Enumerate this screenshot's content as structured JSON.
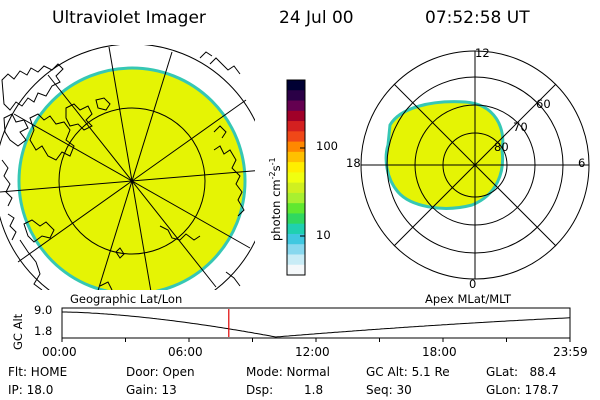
{
  "header": {
    "title": "Ultraviolet Imager",
    "date": "24 Jul 00",
    "time": "07:52:58 UT"
  },
  "colorbar": {
    "unit": "photon cm-2s-1",
    "unit_prefix": "photon cm",
    "unit_sup1": "-2",
    "unit_mid": "s",
    "unit_sup2": "-1",
    "ticks": [
      "100",
      "10"
    ],
    "colors": [
      "#000033",
      "#2a0046",
      "#640050",
      "#a00028",
      "#d42020",
      "#f04818",
      "#ff8800",
      "#ffc000",
      "#ffee00",
      "#f0ff10",
      "#d0f020",
      "#a8f030",
      "#60e830",
      "#30d860",
      "#20d0b0",
      "#40c8e0",
      "#88d8ee",
      "#c8ecf6",
      "#f4f8fa"
    ]
  },
  "left_panel": {
    "label": "Geographic Lat/Lon",
    "fill_color": "#e5f404",
    "edge_color": "#36c7b4"
  },
  "right_panel": {
    "label": "Apex MLat/MLT",
    "mlt_labels": {
      "top": "12",
      "left": "18",
      "right": "6",
      "bottom": "0"
    },
    "lat_labels": [
      "60",
      "70",
      "80"
    ]
  },
  "timeline": {
    "ylabel": "GC Alt",
    "yticks": [
      "9.0",
      "1.8"
    ],
    "xticks": [
      "00:00",
      "06:00",
      "12:00",
      "18:00",
      "23:59"
    ],
    "current_hour": 7.88,
    "marker_color": "#e00000"
  },
  "status": {
    "flt": "Flt: HOME",
    "ip": "IP: 18.0",
    "door": "Door: Open",
    "gain": "Gain: 13",
    "mode": "Mode: Normal",
    "dsp_label": "Dsp:",
    "dsp_value": "1.8",
    "gcalt": "GC Alt: 5.1 Re",
    "seq": "Seq: 30",
    "glat": "GLat:   88.4",
    "glon": "GLon: 178.7"
  }
}
